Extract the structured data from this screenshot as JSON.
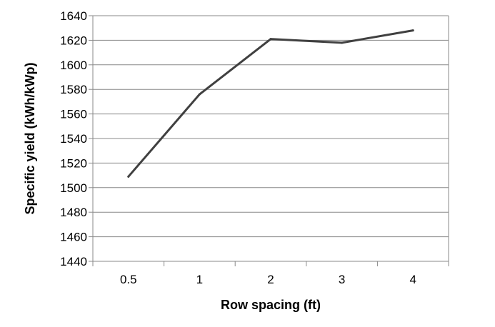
{
  "chart_data": {
    "type": "line",
    "xlabel": "Row spacing (ft)",
    "ylabel": "Specific yield (kWh/kWp)",
    "categories": [
      "0.5",
      "1",
      "2",
      "3",
      "4"
    ],
    "series": [
      {
        "values": [
          1509,
          1576,
          1621,
          1618,
          1628
        ]
      }
    ],
    "ylim": [
      1440,
      1640
    ],
    "yticks": [
      1440,
      1460,
      1480,
      1500,
      1520,
      1540,
      1560,
      1580,
      1600,
      1620,
      1640
    ],
    "ytick_labels": [
      "1440",
      "1460",
      "1480",
      "1500",
      "1520",
      "1540",
      "1560",
      "1580",
      "1600",
      "1620",
      "1640"
    ],
    "grid": true,
    "legend": "none",
    "colors": {
      "line": "#404040",
      "grid": "#888888",
      "axis": "#888888"
    }
  }
}
